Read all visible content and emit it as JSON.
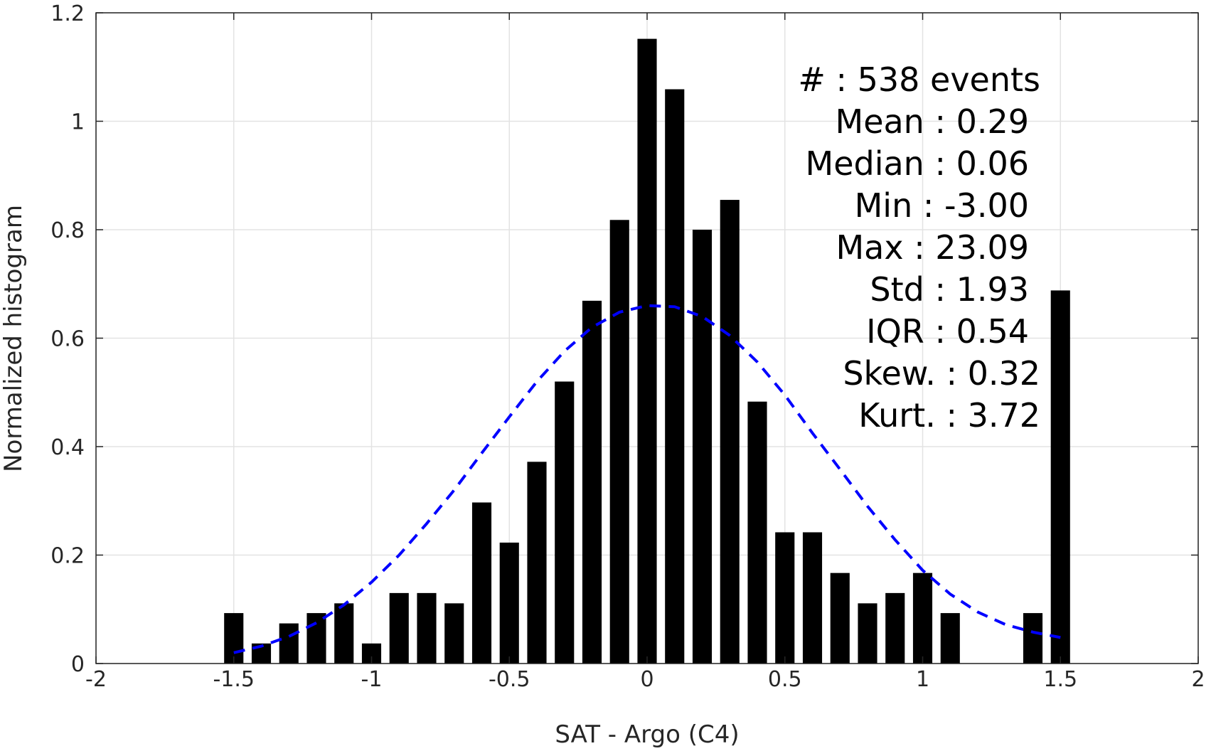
{
  "chart_data": {
    "type": "bar",
    "xlabel": "SAT - Argo (C4)",
    "ylabel": "Normalized histogram",
    "xlim": [
      -2,
      2
    ],
    "ylim": [
      0,
      1.2
    ],
    "grid": true,
    "x_ticks": [
      "-2",
      "-1.5",
      "-1",
      "-0.5",
      "0",
      "0.5",
      "1",
      "1.5",
      "2"
    ],
    "y_ticks": [
      "0",
      "0.2",
      "0.4",
      "0.6",
      "0.8",
      "1",
      "1.2"
    ],
    "bar_color": "#000000",
    "bars": {
      "x": [
        -1.5,
        -1.4,
        -1.3,
        -1.2,
        -1.1,
        -1.0,
        -0.9,
        -0.8,
        -0.7,
        -0.6,
        -0.5,
        -0.4,
        -0.3,
        -0.2,
        -0.1,
        0.0,
        0.1,
        0.2,
        0.3,
        0.4,
        0.5,
        0.6,
        0.7,
        0.8,
        0.9,
        1.0,
        1.1,
        1.4,
        1.5
      ],
      "values": [
        0.093,
        0.037,
        0.074,
        0.093,
        0.111,
        0.037,
        0.13,
        0.13,
        0.111,
        0.297,
        0.223,
        0.372,
        0.52,
        0.669,
        0.818,
        1.152,
        1.059,
        0.8,
        0.855,
        0.483,
        0.242,
        0.242,
        0.167,
        0.111,
        0.13,
        0.167,
        0.093,
        0.093,
        0.688
      ]
    },
    "fit_curve": {
      "style": "dashed",
      "color": "#0000ff",
      "x": [
        -1.5,
        -1.4,
        -1.3,
        -1.2,
        -1.1,
        -1.0,
        -0.9,
        -0.8,
        -0.7,
        -0.6,
        -0.5,
        -0.4,
        -0.3,
        -0.2,
        -0.1,
        0.0,
        0.1,
        0.2,
        0.3,
        0.4,
        0.5,
        0.6,
        0.7,
        0.8,
        0.9,
        1.0,
        1.1,
        1.2,
        1.3,
        1.4,
        1.5
      ],
      "y": [
        0.02,
        0.032,
        0.05,
        0.075,
        0.108,
        0.15,
        0.2,
        0.258,
        0.32,
        0.388,
        0.455,
        0.52,
        0.576,
        0.62,
        0.648,
        0.66,
        0.658,
        0.64,
        0.605,
        0.556,
        0.495,
        0.425,
        0.358,
        0.29,
        0.228,
        0.172,
        0.128,
        0.095,
        0.072,
        0.058,
        0.048
      ]
    },
    "annotation_lines": [
      "#  : 538 events",
      "Mean : 0.29",
      "Median : 0.06",
      "Min : -3.00",
      "Max : 23.09",
      "Std : 1.93",
      "IQR : 0.54",
      "Skew. : 0.32",
      "Kurt. : 3.72"
    ]
  }
}
